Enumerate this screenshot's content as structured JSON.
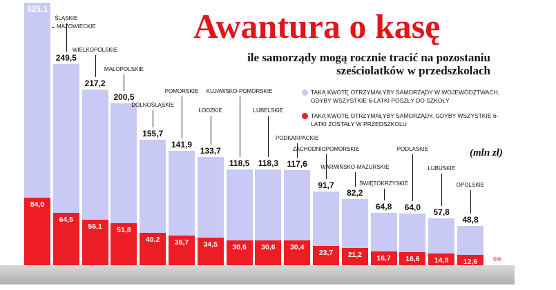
{
  "header": {
    "title": "Awantura o kasę",
    "subtitle_line1": "ile samorządy mogą rocznie tracić na pozostaniu",
    "subtitle_line2": "sześciolatków w przedszkolach",
    "unit_note": "(mln zł)",
    "copyright": "©℗"
  },
  "colors": {
    "upper_series": "#c9c9f5",
    "lower_series": "#ee1c24",
    "title": "#e2141b"
  },
  "chart_data": {
    "type": "bar",
    "stacked": false,
    "title": "Awantura o kasę",
    "subtitle": "ile samorządy mogą rocznie tracić na pozostaniu sześciolatków w przedszkolach",
    "ylabel": "(mln zł)",
    "ylim": [
      0,
      325.1
    ],
    "grid": false,
    "legend": "top-right",
    "categories": [
      "MAZOWIECKIE",
      "ŚLĄSKIE",
      "WIELKOPOLSKIE",
      "MAŁOPOLSKIE",
      "DOLNOŚLĄSKIE",
      "POMORSKIE",
      "ŁÓDZKIE",
      "KUJAWSKO-POMORSKIE",
      "LUBELSKIE",
      "PODKARPACKIE",
      "ZACHODNIOPOMORSKIE",
      "WARMIŃSKO-MAZURSKIE",
      "ŚWIĘTOKRZYSKIE",
      "PODLASKIE",
      "LUBUSKIE",
      "OPOLSKIE"
    ],
    "series": [
      {
        "name": "TAKĄ KWOTĘ OTRZYMAŁYBY SAMORZĄDY W WOJEWÓDZTWACH, GDYBY WSZYSTKIE 6-LATKI POSZŁY DO SZKOŁY",
        "color": "#c9c9f5",
        "values": [
          325.1,
          249.5,
          217.2,
          200.5,
          155.7,
          141.9,
          133.7,
          118.5,
          118.3,
          117.6,
          91.7,
          82.2,
          64.8,
          64.0,
          57.8,
          48.8
        ],
        "labels": [
          "325,1",
          "249,5",
          "217,2",
          "200,5",
          "155,7",
          "141,9",
          "133,7",
          "118,5",
          "118,3",
          "117,6",
          "91,7",
          "82,2",
          "64,8",
          "64,0",
          "57,8",
          "48,8"
        ]
      },
      {
        "name": "TAKĄ KWOTĘ OTRZYMAŁYBY SAMORZĄDY, GDYBY WSZYSTKIE 6-LATKI ZOSTAŁY W PRZEDSZKOLU",
        "color": "#ee1c24",
        "values": [
          84.0,
          64.5,
          56.1,
          51.8,
          40.2,
          36.7,
          34.5,
          30.6,
          30.6,
          30.4,
          23.7,
          21.2,
          16.7,
          16.6,
          14.9,
          12.6
        ],
        "labels": [
          "84,0",
          "64,5",
          "56,1",
          "51,8",
          "40,2",
          "36,7",
          "34,5",
          "30,6",
          "30,6",
          "30,4",
          "23,7",
          "21,2",
          "16,7",
          "16,6",
          "14,9",
          "12,6"
        ]
      }
    ]
  }
}
